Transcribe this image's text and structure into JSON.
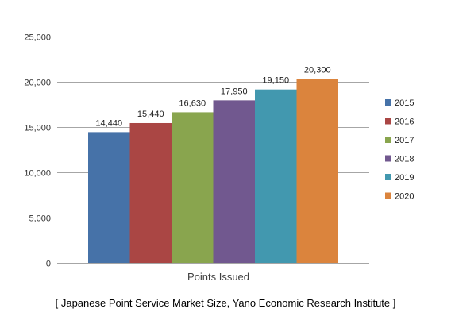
{
  "chart_data": {
    "type": "bar",
    "categories": [
      "Points Issued"
    ],
    "series": [
      {
        "name": "2015",
        "values": [
          14440
        ],
        "color": "#4672a8"
      },
      {
        "name": "2016",
        "values": [
          15440
        ],
        "color": "#aa4644"
      },
      {
        "name": "2017",
        "values": [
          16630
        ],
        "color": "#89a54e"
      },
      {
        "name": "2018",
        "values": [
          17950
        ],
        "color": "#71588f"
      },
      {
        "name": "2019",
        "values": [
          19150
        ],
        "color": "#4298af"
      },
      {
        "name": "2020",
        "values": [
          20300
        ],
        "color": "#db843d"
      }
    ],
    "data_labels": [
      "14,440",
      "15,440",
      "16,630",
      "17,950",
      "19,150",
      "20,300"
    ],
    "y_ticks": [
      0,
      5000,
      10000,
      15000,
      20000,
      25000
    ],
    "y_tick_labels": [
      "0",
      "5,000",
      "10,000",
      "15,000",
      "20,000",
      "25,000"
    ],
    "ylim": [
      0,
      25000
    ],
    "grid": true,
    "legend_position": "right",
    "caption": "[ Japanese Point Service Market Size, Yano Economic Research Institute ]"
  }
}
